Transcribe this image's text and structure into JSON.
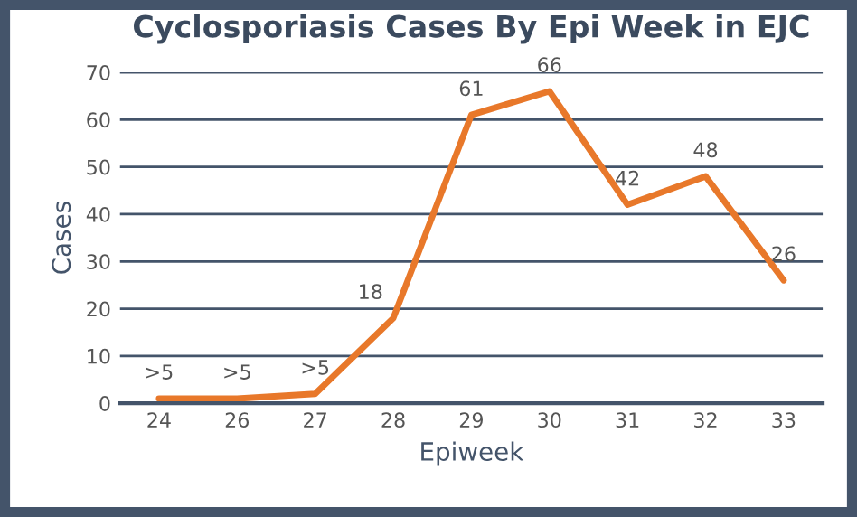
{
  "chart_data": {
    "type": "line",
    "title": "Cyclosporiasis Cases By Epi Week in EJC",
    "xlabel": "Epiweek",
    "ylabel": "Cases",
    "categories": [
      "24",
      "26",
      "27",
      "28",
      "29",
      "30",
      "31",
      "32",
      "33"
    ],
    "series": [
      {
        "color": "#e8782a",
        "values": [
          1,
          1,
          2,
          18,
          61,
          66,
          42,
          48,
          26
        ],
        "value_labels": [
          ">5",
          ">5",
          ">5",
          "18",
          "61",
          "66",
          "42",
          "48",
          "26"
        ]
      }
    ],
    "ylim": [
      0,
      70
    ],
    "yticks": [
      0,
      10,
      20,
      30,
      40,
      50,
      60,
      70
    ],
    "grid": "y",
    "marker": "none",
    "line_style": "solid"
  }
}
